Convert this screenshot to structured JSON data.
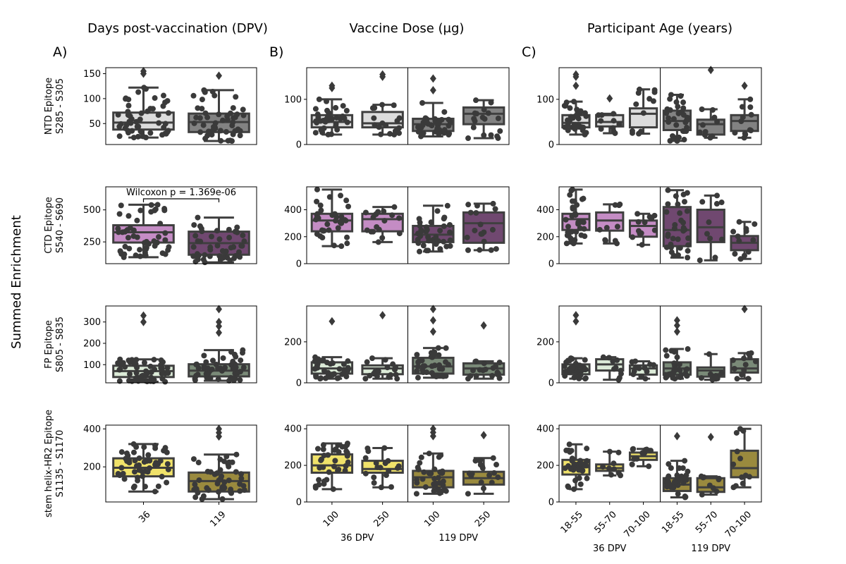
{
  "column_titles": {
    "A": "Days post-vaccination (DPV)",
    "B": "Vaccine Dose (μg)",
    "C": "Participant Age (years)"
  },
  "panel_labels": {
    "A": "A)",
    "B": "B)",
    "C": "C)"
  },
  "ylabel_main": "Summed Enrichment",
  "rows": [
    {
      "label": [
        "NTD Epitope",
        "S285 - S305"
      ]
    },
    {
      "label": [
        "CTD Epitope",
        "S540 - S690"
      ]
    },
    {
      "label": [
        "FP Epitope",
        "S805 - S835"
      ]
    },
    {
      "label": [
        "stem helix-HR2 Epitope",
        "S1135 - S1170"
      ]
    }
  ],
  "x_ticks": {
    "A": [
      "36",
      "119"
    ],
    "B": [
      "100",
      "250",
      "100",
      "250"
    ],
    "C": [
      "18-55",
      "55-70",
      "70-100",
      "18-55",
      "55-70",
      "70-100"
    ]
  },
  "group_labels": {
    "B": [
      "36 DPV",
      "119 DPV"
    ],
    "C": [
      "36 DPV",
      "119 DPV"
    ]
  },
  "annotation": {
    "text": "Wilcoxon p = 1.369e-06",
    "row": 1
  },
  "chart_data": [
    {
      "type": "box",
      "row": 0,
      "panel": "A",
      "ylim": [
        8,
        162
      ],
      "yticks": [
        50,
        100,
        150
      ],
      "boxes": [
        {
          "label": "36",
          "color": "#dcdcdc",
          "q1": 38,
          "median": 52,
          "q3": 72,
          "lo": 22,
          "hi": 122,
          "outliers": [
            150,
            155
          ],
          "n": 50
        },
        {
          "label": "119",
          "color": "#828282",
          "q1": 33,
          "median": 53,
          "q3": 70,
          "lo": 15,
          "hi": 117,
          "outliers": [
            146
          ],
          "n": 48
        }
      ]
    },
    {
      "type": "box",
      "row": 0,
      "panel": "B",
      "ylim": [
        0,
        170
      ],
      "yticks": [
        0,
        100
      ],
      "boxes": [
        {
          "label": "100",
          "group": "36 DPV",
          "color": "#dcdcdc",
          "q1": 38,
          "median": 50,
          "q3": 65,
          "lo": 22,
          "hi": 100,
          "outliers": [
            125,
            130
          ],
          "n": 34
        },
        {
          "label": "250",
          "group": "36 DPV",
          "color": "#dcdcdc",
          "q1": 38,
          "median": 47,
          "q3": 72,
          "lo": 22,
          "hi": 88,
          "outliers": [
            150,
            155
          ],
          "n": 16
        },
        {
          "label": "100",
          "group": "119 DPV",
          "color": "#828282",
          "q1": 30,
          "median": 45,
          "q3": 57,
          "lo": 18,
          "hi": 92,
          "outliers": [
            120,
            146
          ],
          "n": 35
        },
        {
          "label": "250",
          "group": "119 DPV",
          "color": "#828282",
          "q1": 45,
          "median": 68,
          "q3": 82,
          "lo": 14,
          "hi": 98,
          "outliers": [],
          "n": 16
        }
      ]
    },
    {
      "type": "box",
      "row": 0,
      "panel": "C",
      "ylim": [
        0,
        170
      ],
      "yticks": [
        0,
        100
      ],
      "boxes": [
        {
          "label": "18-55",
          "group": "36 DPV",
          "color": "#dcdcdc",
          "q1": 38,
          "median": 48,
          "q3": 65,
          "lo": 22,
          "hi": 95,
          "outliers": [
            130,
            150,
            155
          ],
          "n": 32
        },
        {
          "label": "55-70",
          "group": "36 DPV",
          "color": "#dcdcdc",
          "q1": 40,
          "median": 50,
          "q3": 65,
          "lo": 25,
          "hi": 68,
          "outliers": [
            102
          ],
          "n": 8
        },
        {
          "label": "70-100",
          "group": "36 DPV",
          "color": "#dcdcdc",
          "q1": 38,
          "median": 68,
          "q3": 80,
          "lo": 24,
          "hi": 122,
          "outliers": [],
          "n": 10
        },
        {
          "label": "18-55",
          "group": "119 DPV",
          "color": "#828282",
          "q1": 32,
          "median": 52,
          "q3": 75,
          "lo": 8,
          "hi": 110,
          "outliers": [],
          "n": 30
        },
        {
          "label": "55-70",
          "group": "119 DPV",
          "color": "#828282",
          "q1": 22,
          "median": 45,
          "q3": 55,
          "lo": 15,
          "hi": 78,
          "outliers": [
            165
          ],
          "n": 8
        },
        {
          "label": "70-100",
          "group": "119 DPV",
          "color": "#828282",
          "q1": 30,
          "median": 52,
          "q3": 65,
          "lo": 15,
          "hi": 100,
          "outliers": [
            130
          ],
          "n": 10
        }
      ]
    },
    {
      "type": "box",
      "row": 1,
      "panel": "A",
      "ylim": [
        80,
        680
      ],
      "yticks": [
        250,
        500
      ],
      "boxes": [
        {
          "label": "36",
          "color": "#c48cc4",
          "q1": 245,
          "median": 325,
          "q3": 380,
          "lo": 130,
          "hi": 540,
          "outliers": [],
          "n": 50
        },
        {
          "label": "119",
          "color": "#704870",
          "q1": 150,
          "median": 240,
          "q3": 330,
          "lo": 90,
          "hi": 440,
          "outliers": [],
          "n": 48
        }
      ]
    },
    {
      "type": "box",
      "row": 1,
      "panel": "B",
      "ylim": [
        0,
        570
      ],
      "yticks": [
        0,
        200,
        400
      ],
      "boxes": [
        {
          "label": "100",
          "group": "36 DPV",
          "color": "#c48cc4",
          "q1": 240,
          "median": 320,
          "q3": 370,
          "lo": 130,
          "hi": 550,
          "outliers": [],
          "n": 34
        },
        {
          "label": "250",
          "group": "36 DPV",
          "color": "#c48cc4",
          "q1": 240,
          "median": 330,
          "q3": 370,
          "lo": 160,
          "hi": 420,
          "outliers": [],
          "n": 16
        },
        {
          "label": "100",
          "group": "119 DPV",
          "color": "#704870",
          "q1": 160,
          "median": 215,
          "q3": 280,
          "lo": 90,
          "hi": 430,
          "outliers": [],
          "n": 35
        },
        {
          "label": "250",
          "group": "119 DPV",
          "color": "#704870",
          "q1": 155,
          "median": 300,
          "q3": 380,
          "lo": 100,
          "hi": 445,
          "outliers": [],
          "n": 16
        }
      ]
    },
    {
      "type": "box",
      "row": 1,
      "panel": "C",
      "ylim": [
        0,
        570
      ],
      "yticks": [
        0,
        200,
        400
      ],
      "boxes": [
        {
          "label": "18-55",
          "group": "36 DPV",
          "color": "#c48cc4",
          "q1": 250,
          "median": 330,
          "q3": 370,
          "lo": 150,
          "hi": 550,
          "outliers": [],
          "n": 32
        },
        {
          "label": "55-70",
          "group": "36 DPV",
          "color": "#c48cc4",
          "q1": 245,
          "median": 320,
          "q3": 380,
          "lo": 150,
          "hi": 440,
          "outliers": [],
          "n": 8
        },
        {
          "label": "70-100",
          "group": "36 DPV",
          "color": "#c48cc4",
          "q1": 200,
          "median": 280,
          "q3": 320,
          "lo": 140,
          "hi": 370,
          "outliers": [],
          "n": 10
        },
        {
          "label": "18-55",
          "group": "119 DPV",
          "color": "#704870",
          "q1": 130,
          "median": 250,
          "q3": 420,
          "lo": 45,
          "hi": 545,
          "outliers": [],
          "n": 30
        },
        {
          "label": "55-70",
          "group": "119 DPV",
          "color": "#704870",
          "q1": 160,
          "median": 270,
          "q3": 400,
          "lo": 25,
          "hi": 505,
          "outliers": [],
          "n": 8
        },
        {
          "label": "70-100",
          "group": "119 DPV",
          "color": "#704870",
          "q1": 100,
          "median": 155,
          "q3": 205,
          "lo": 35,
          "hi": 310,
          "outliers": [],
          "n": 10
        }
      ]
    },
    {
      "type": "box",
      "row": 2,
      "panel": "A",
      "ylim": [
        15,
        375
      ],
      "yticks": [
        100,
        200,
        300
      ],
      "boxes": [
        {
          "label": "36",
          "color": "#dcebd8",
          "q1": 42,
          "median": 70,
          "q3": 95,
          "lo": 20,
          "hi": 125,
          "outliers": [
            300,
            330
          ],
          "n": 50
        },
        {
          "label": "119",
          "color": "#7a8a78",
          "q1": 45,
          "median": 72,
          "q3": 102,
          "lo": 25,
          "hi": 168,
          "outliers": [
            250,
            280,
            300,
            360
          ],
          "n": 48
        }
      ]
    },
    {
      "type": "box",
      "row": 2,
      "panel": "B",
      "ylim": [
        0,
        375
      ],
      "yticks": [
        0,
        200
      ],
      "boxes": [
        {
          "label": "100",
          "group": "36 DPV",
          "color": "#dcebd8",
          "q1": 45,
          "median": 70,
          "q3": 100,
          "lo": 20,
          "hi": 125,
          "outliers": [
            300
          ],
          "n": 34
        },
        {
          "label": "250",
          "group": "36 DPV",
          "color": "#dcebd8",
          "q1": 42,
          "median": 70,
          "q3": 85,
          "lo": 20,
          "hi": 120,
          "outliers": [
            330
          ],
          "n": 16
        },
        {
          "label": "100",
          "group": "119 DPV",
          "color": "#7a8a78",
          "q1": 45,
          "median": 80,
          "q3": 122,
          "lo": 25,
          "hi": 170,
          "outliers": [
            250,
            305,
            360
          ],
          "n": 35
        },
        {
          "label": "250",
          "group": "119 DPV",
          "color": "#7a8a78",
          "q1": 40,
          "median": 70,
          "q3": 95,
          "lo": 20,
          "hi": 105,
          "outliers": [
            280
          ],
          "n": 16
        }
      ]
    },
    {
      "type": "box",
      "row": 2,
      "panel": "C",
      "ylim": [
        0,
        375
      ],
      "yticks": [
        0,
        200
      ],
      "boxes": [
        {
          "label": "18-55",
          "group": "36 DPV",
          "color": "#dcebd8",
          "q1": 42,
          "median": 60,
          "q3": 90,
          "lo": 20,
          "hi": 120,
          "outliers": [
            300,
            330
          ],
          "n": 32
        },
        {
          "label": "55-70",
          "group": "36 DPV",
          "color": "#dcebd8",
          "q1": 60,
          "median": 90,
          "q3": 115,
          "lo": 15,
          "hi": 125,
          "outliers": [],
          "n": 8
        },
        {
          "label": "70-100",
          "group": "36 DPV",
          "color": "#dcebd8",
          "q1": 40,
          "median": 70,
          "q3": 85,
          "lo": 20,
          "hi": 105,
          "outliers": [],
          "n": 10
        },
        {
          "label": "18-55",
          "group": "119 DPV",
          "color": "#7a8a78",
          "q1": 40,
          "median": 70,
          "q3": 100,
          "lo": 20,
          "hi": 165,
          "outliers": [
            250,
            280,
            305
          ],
          "n": 30
        },
        {
          "label": "55-70",
          "group": "119 DPV",
          "color": "#7a8a78",
          "q1": 30,
          "median": 60,
          "q3": 75,
          "lo": 15,
          "hi": 140,
          "outliers": [],
          "n": 8
        },
        {
          "label": "70-100",
          "group": "119 DPV",
          "color": "#7a8a78",
          "q1": 50,
          "median": 70,
          "q3": 115,
          "lo": 20,
          "hi": 145,
          "outliers": [
            360
          ],
          "n": 10
        }
      ]
    },
    {
      "type": "box",
      "row": 3,
      "panel": "A",
      "ylim": [
        15,
        420
      ],
      "yticks": [
        200,
        400
      ],
      "boxes": [
        {
          "label": "36",
          "color": "#f0e26a",
          "q1": 150,
          "median": 195,
          "q3": 245,
          "lo": 70,
          "hi": 320,
          "outliers": [],
          "n": 50
        },
        {
          "label": "119",
          "color": "#9a8a3e",
          "q1": 70,
          "median": 125,
          "q3": 170,
          "lo": 30,
          "hi": 265,
          "outliers": [
            360,
            380,
            400
          ],
          "n": 48
        }
      ]
    },
    {
      "type": "box",
      "row": 3,
      "panel": "B",
      "ylim": [
        0,
        420
      ],
      "yticks": [
        0,
        200,
        400
      ],
      "boxes": [
        {
          "label": "100",
          "group": "36 DPV",
          "color": "#f0e26a",
          "q1": 160,
          "median": 200,
          "q3": 260,
          "lo": 70,
          "hi": 320,
          "outliers": [],
          "n": 34
        },
        {
          "label": "250",
          "group": "36 DPV",
          "color": "#f0e26a",
          "q1": 160,
          "median": 180,
          "q3": 225,
          "lo": 80,
          "hi": 295,
          "outliers": [],
          "n": 16
        },
        {
          "label": "100",
          "group": "119 DPV",
          "color": "#9a8a3e",
          "q1": 80,
          "median": 135,
          "q3": 170,
          "lo": 45,
          "hi": 265,
          "outliers": [
            360,
            380,
            400
          ],
          "n": 35
        },
        {
          "label": "250",
          "group": "119 DPV",
          "color": "#9a8a3e",
          "q1": 95,
          "median": 130,
          "q3": 165,
          "lo": 45,
          "hi": 240,
          "outliers": [
            365
          ],
          "n": 16
        }
      ]
    },
    {
      "type": "box",
      "row": 3,
      "panel": "C",
      "ylim": [
        0,
        420
      ],
      "yticks": [
        0,
        200,
        400
      ],
      "boxes": [
        {
          "label": "18-55",
          "group": "36 DPV",
          "color": "#f0e26a",
          "q1": 150,
          "median": 190,
          "q3": 230,
          "lo": 70,
          "hi": 315,
          "outliers": [],
          "n": 32
        },
        {
          "label": "55-70",
          "group": "36 DPV",
          "color": "#f0e26a",
          "q1": 170,
          "median": 185,
          "q3": 205,
          "lo": 145,
          "hi": 275,
          "outliers": [],
          "n": 8
        },
        {
          "label": "70-100",
          "group": "36 DPV",
          "color": "#f0e26a",
          "q1": 230,
          "median": 250,
          "q3": 270,
          "lo": 195,
          "hi": 290,
          "outliers": [],
          "n": 10
        },
        {
          "label": "18-55",
          "group": "119 DPV",
          "color": "#9a8a3e",
          "q1": 60,
          "median": 95,
          "q3": 130,
          "lo": 25,
          "hi": 225,
          "outliers": [
            360
          ],
          "n": 30
        },
        {
          "label": "55-70",
          "group": "119 DPV",
          "color": "#9a8a3e",
          "q1": 55,
          "median": 80,
          "q3": 130,
          "lo": 40,
          "hi": 140,
          "outliers": [
            355
          ],
          "n": 8
        },
        {
          "label": "70-100",
          "group": "119 DPV",
          "color": "#9a8a3e",
          "q1": 135,
          "median": 185,
          "q3": 280,
          "lo": 80,
          "hi": 400,
          "outliers": [],
          "n": 10
        }
      ]
    }
  ]
}
